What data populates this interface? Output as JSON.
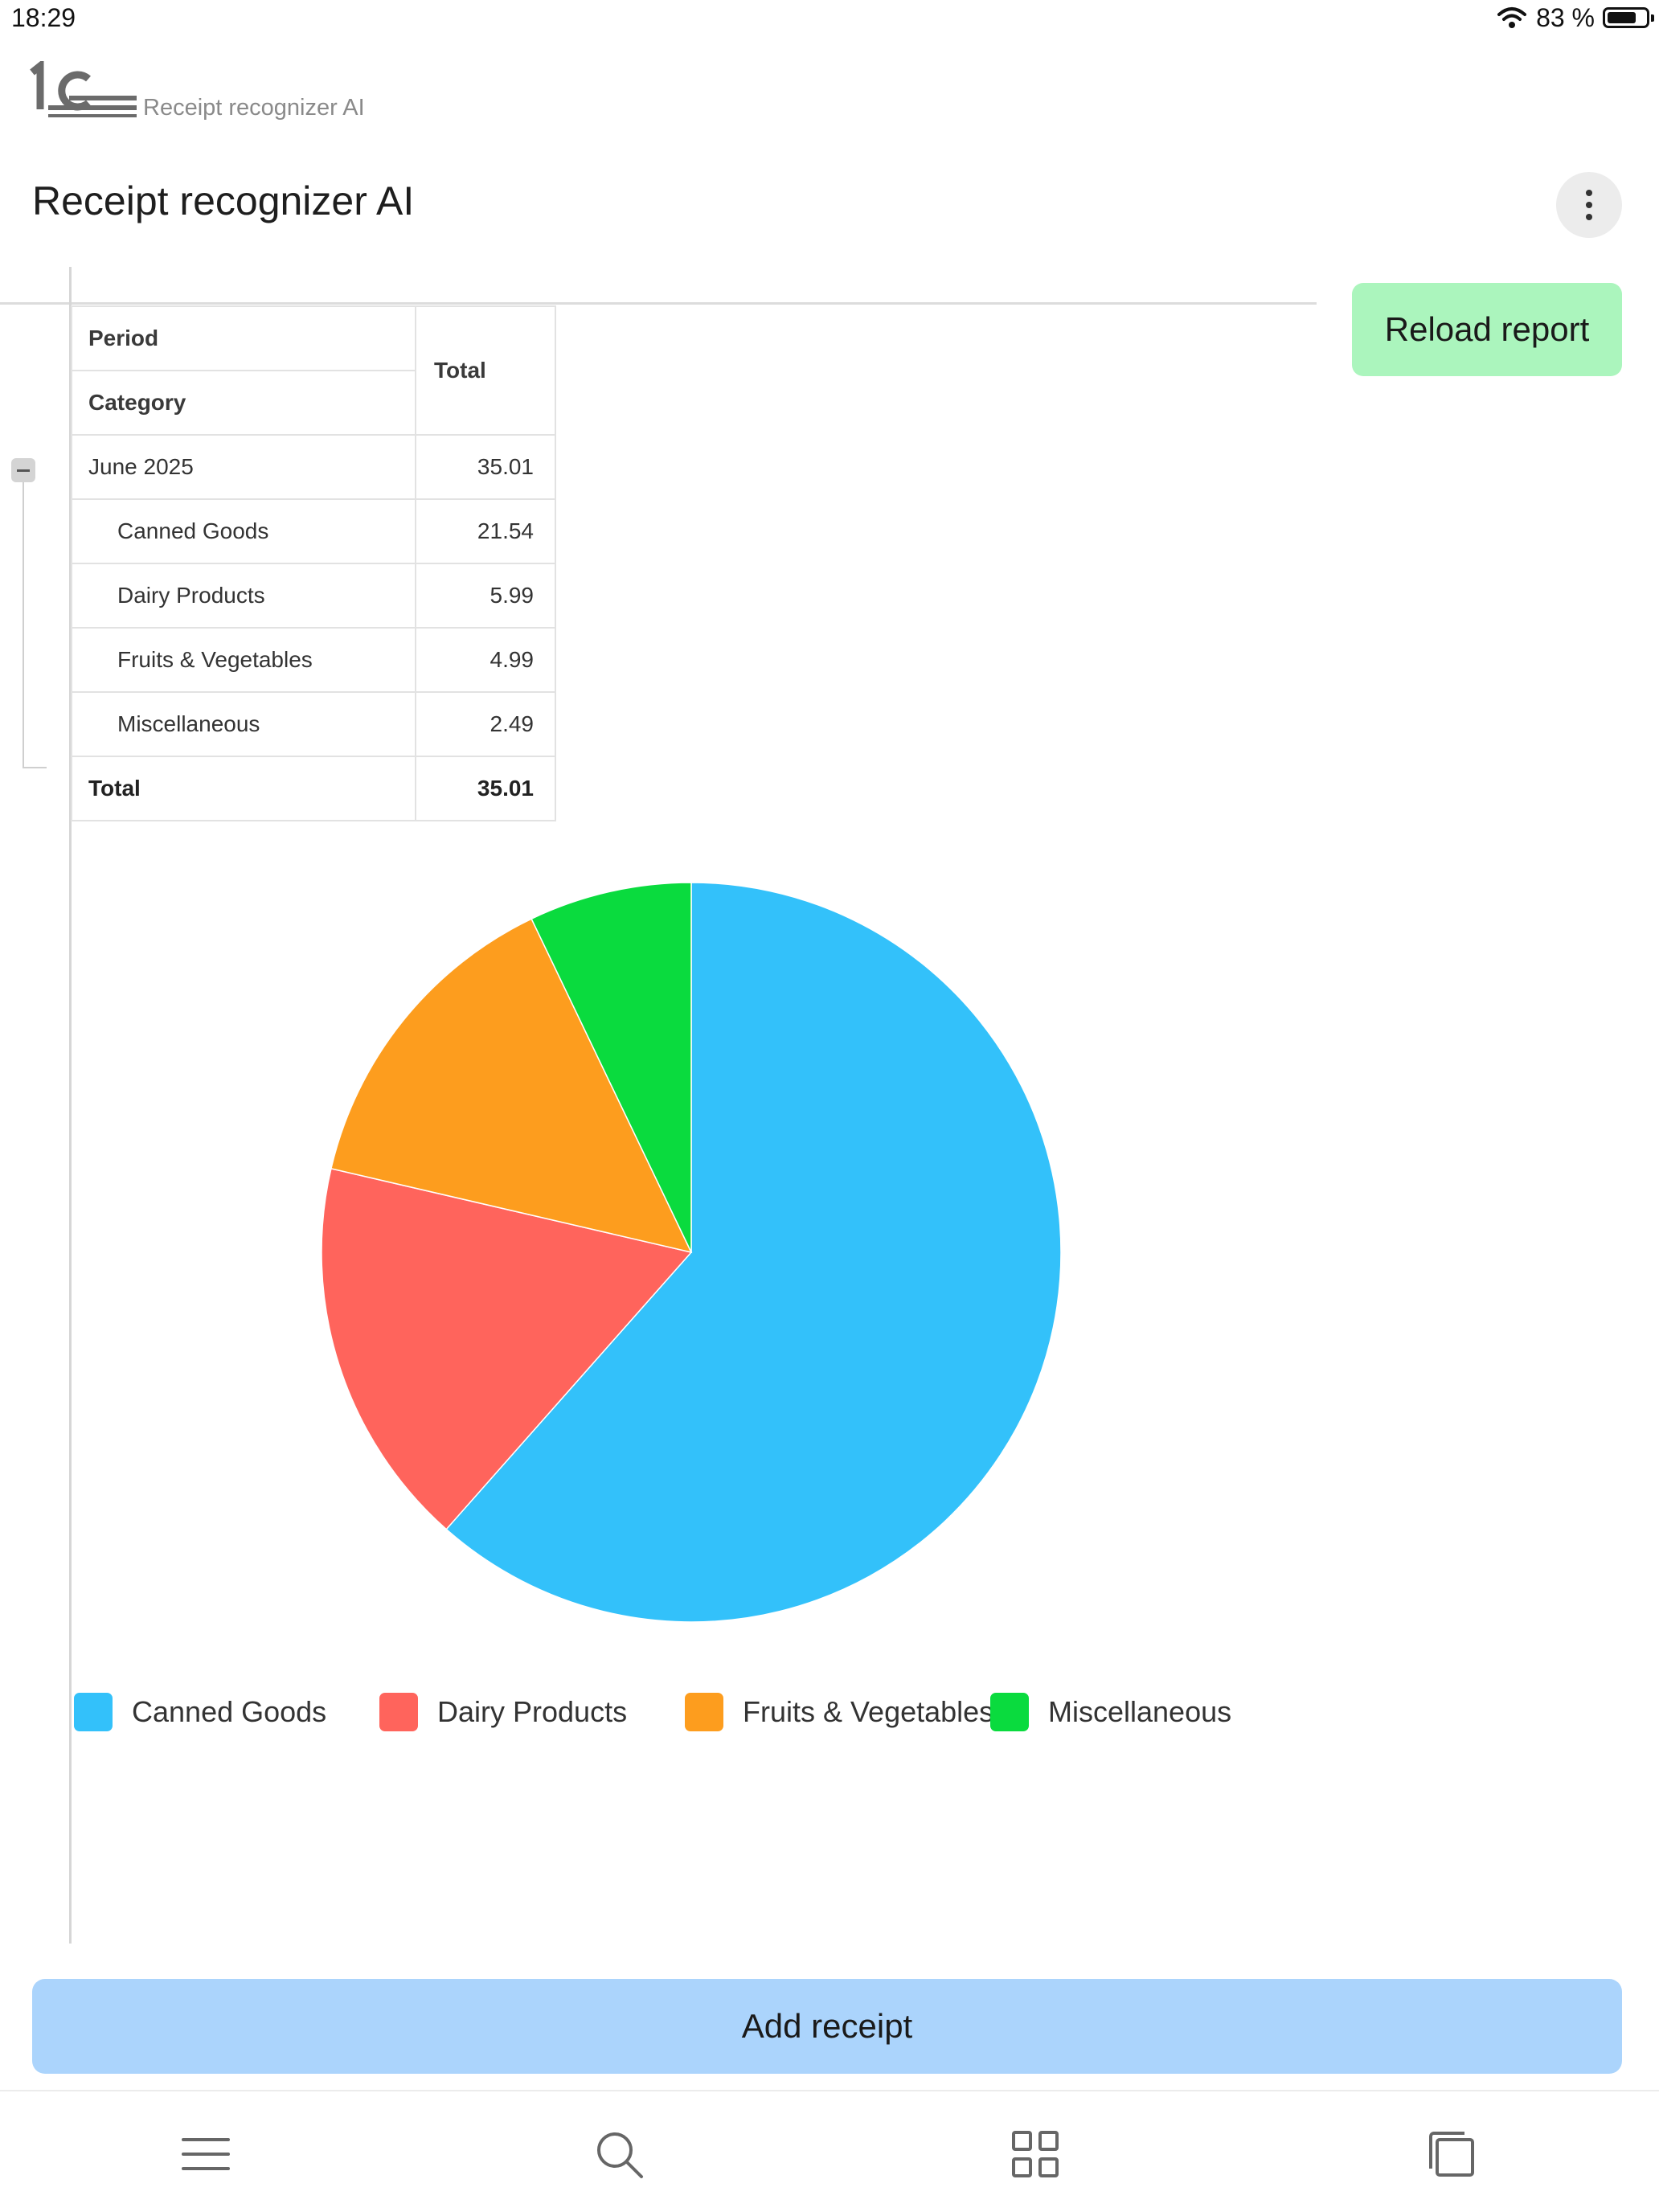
{
  "status_bar": {
    "time": "18:29",
    "battery_text": "83 %",
    "battery_level": 0.83,
    "icons": [
      "wifi-icon",
      "battery-icon"
    ]
  },
  "header": {
    "logo_caption": "Receipt recognizer AI",
    "title": "Receipt recognizer AI",
    "more_icon": "more-vertical-icon"
  },
  "toolbar": {
    "reload_label": "Reload report"
  },
  "report_table": {
    "header_row1": "Period",
    "header_row2": "Category",
    "header_total": "Total",
    "group": {
      "label": "June 2025",
      "value": "35.01",
      "expanded": true
    },
    "rows": [
      {
        "label": "Canned Goods",
        "value": "21.54"
      },
      {
        "label": "Dairy Products",
        "value": "5.99"
      },
      {
        "label": "Fruits & Vegetables",
        "value": "4.99"
      },
      {
        "label": "Miscellaneous",
        "value": "2.49"
      }
    ],
    "total_label": "Total",
    "total_value": "35.01"
  },
  "chart_data": {
    "type": "pie",
    "categories": [
      "Canned Goods",
      "Dairy Products",
      "Fruits & Vegetables",
      "Miscellaneous"
    ],
    "values": [
      21.54,
      5.99,
      4.99,
      2.49
    ],
    "colors": [
      "#33c1fa",
      "#ff645c",
      "#fd9d1e",
      "#0adb3e"
    ],
    "start_angle_deg": 0,
    "direction": "clockwise",
    "legend": "bottom-left"
  },
  "footer": {
    "add_receipt_label": "Add receipt"
  },
  "bottom_nav": {
    "icons": [
      "menu-icon",
      "search-icon",
      "grid-icon",
      "windows-icon"
    ]
  }
}
